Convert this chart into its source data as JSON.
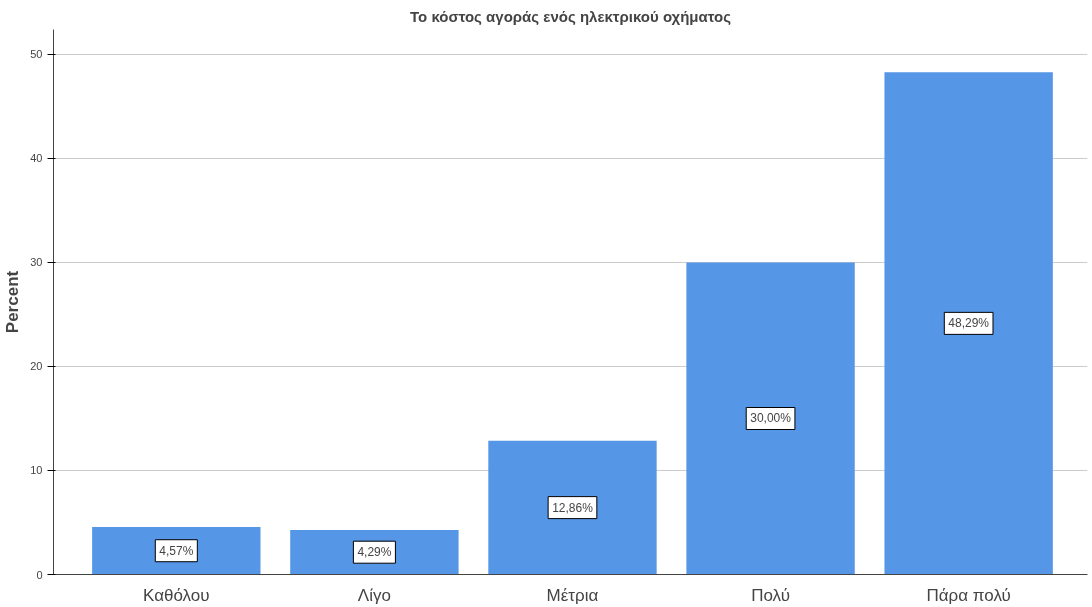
{
  "chart_data": {
    "type": "bar",
    "title": "Το κόστος αγοράς ενός ηλεκτρικού οχήματος",
    "ylabel": "Percent",
    "categories": [
      "Καθόλου",
      "Λίγο",
      "Μέτρια",
      "Πολύ",
      "Πάρα πολύ"
    ],
    "values": [
      4.57,
      4.29,
      12.86,
      30.0,
      48.29
    ],
    "value_labels": [
      "4,57%",
      "4,29%",
      "12,86%",
      "30,00%",
      "48,29%"
    ],
    "color": "#5596e6",
    "ylim": [
      0,
      52.4
    ],
    "yticks": [
      0,
      10,
      20,
      30,
      40,
      50
    ],
    "grid": "y"
  }
}
